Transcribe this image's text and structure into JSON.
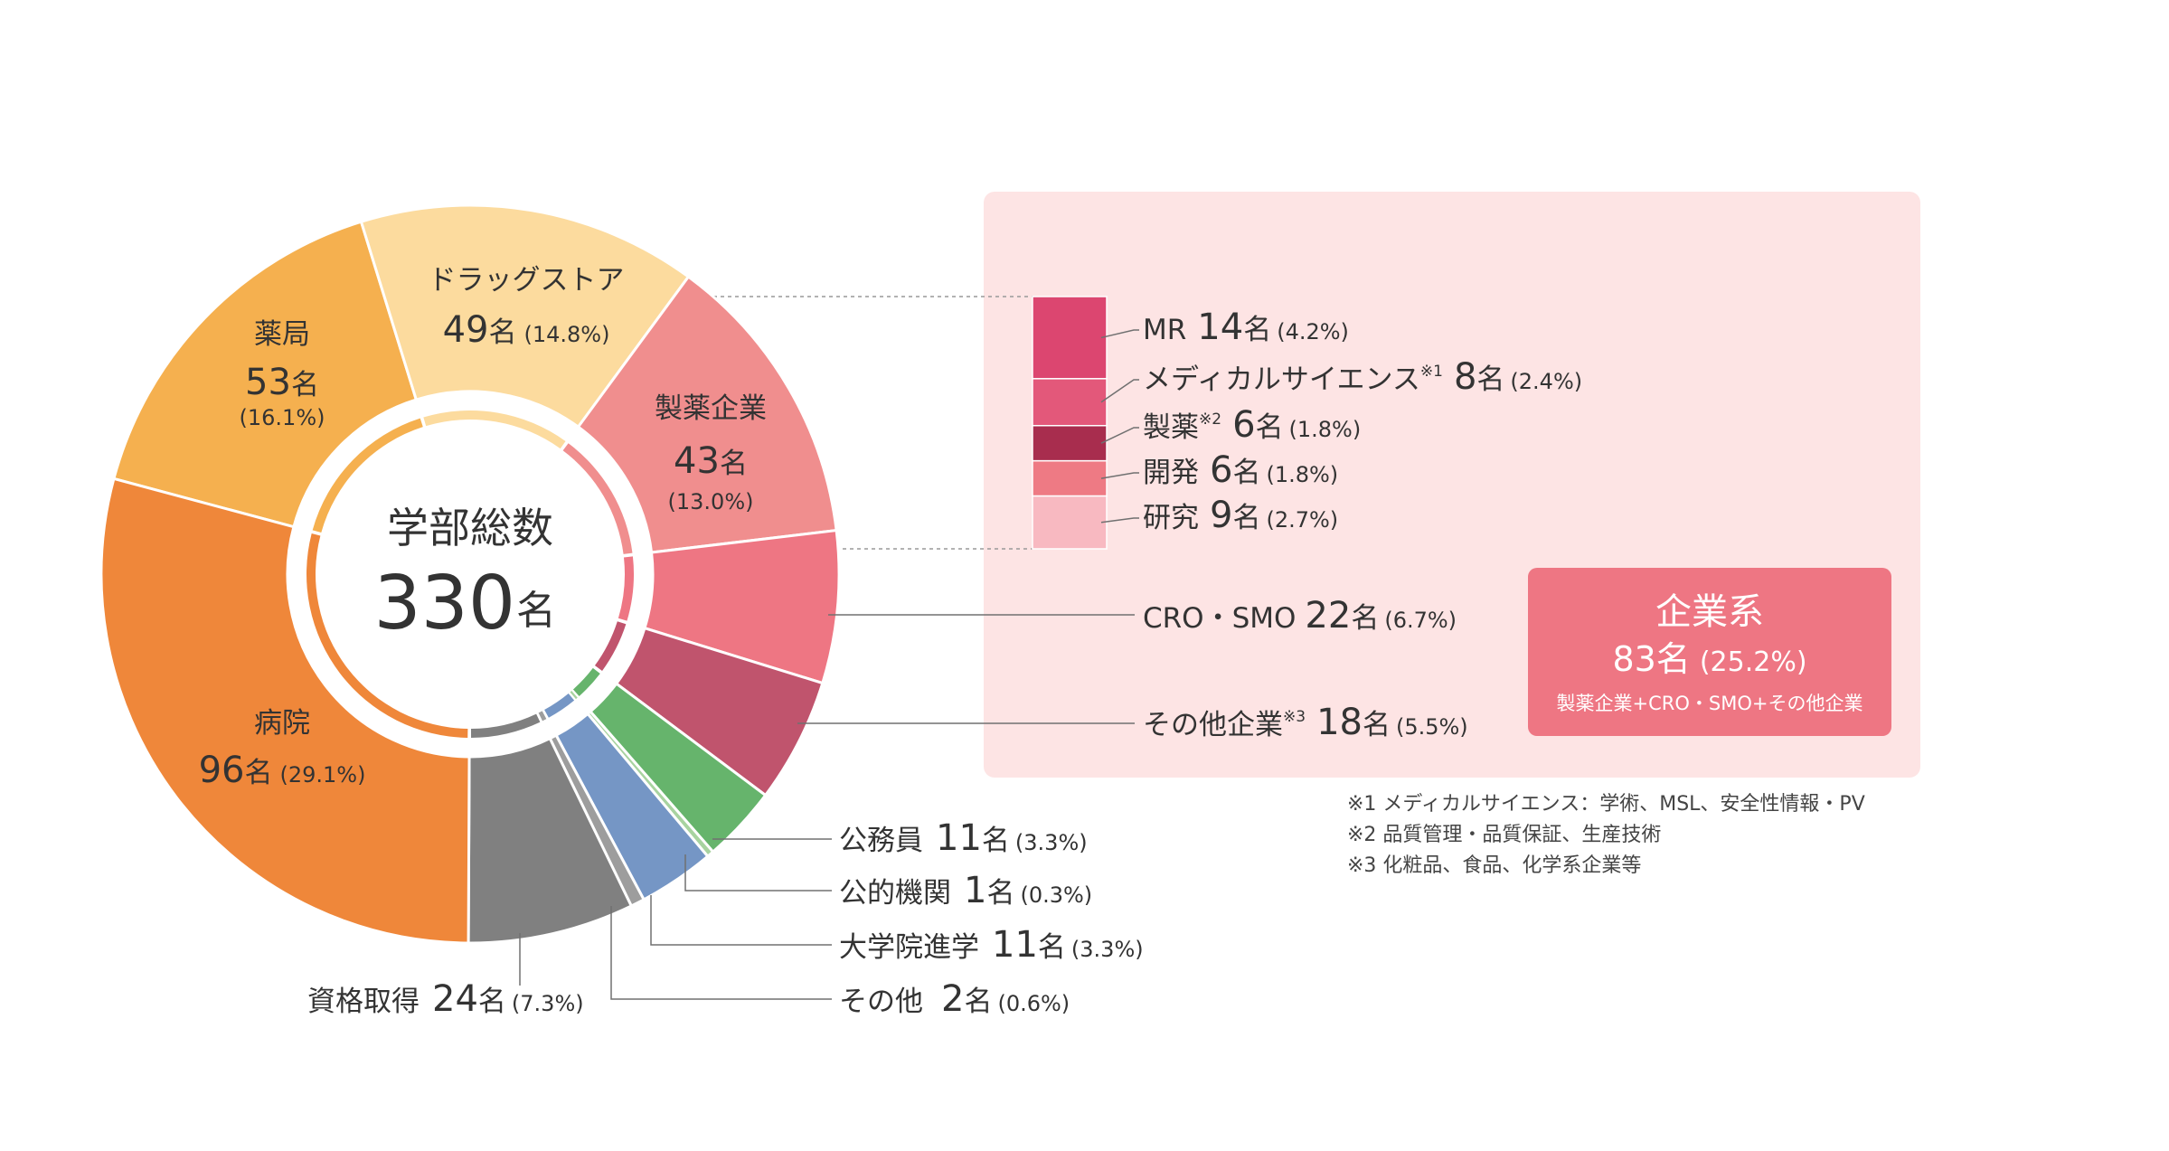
{
  "center": {
    "title": "学部総数",
    "total": "330",
    "unit": "名"
  },
  "chart_data": {
    "type": "pie",
    "style": "donut",
    "total": 330,
    "unit": "名",
    "slices": [
      {
        "label": "薬局",
        "value": 53,
        "pct": "(16.1%)",
        "color": "#F5B04F"
      },
      {
        "label": "ドラッグストア",
        "value": 49,
        "pct": "(14.8%)",
        "color": "#FCDB9E"
      },
      {
        "label": "製薬企業",
        "value": 43,
        "pct": "(13.0%)",
        "color": "#F08E8E"
      },
      {
        "label": "CRO・SMO",
        "value": 22,
        "pct": "(6.7%)",
        "color": "#EE7683"
      },
      {
        "label": "その他企業",
        "value": 18,
        "pct": "(5.5%)",
        "color": "#C0546D",
        "note": "※3"
      },
      {
        "label": "公務員",
        "value": 11,
        "pct": "(3.3%)",
        "color": "#66B46C"
      },
      {
        "label": "公的機関",
        "value": 1,
        "pct": "(0.3%)",
        "color": "#A8D3A0"
      },
      {
        "label": "大学院進学",
        "value": 11,
        "pct": "(3.3%)",
        "color": "#7596C5"
      },
      {
        "label": "その他",
        "value": 2,
        "pct": "(0.6%)",
        "color": "#9D9D9D"
      },
      {
        "label": "資格取得",
        "value": 24,
        "pct": "(7.3%)",
        "color": "#808080"
      },
      {
        "label": "病院",
        "value": 96,
        "pct": "(29.1%)",
        "color": "#EF873A"
      }
    ],
    "breakdown": {
      "parent": "製薬企業",
      "items": [
        {
          "label": "MR",
          "value": 14,
          "pct": "(4.2%)",
          "color": "#DC4670",
          "note": ""
        },
        {
          "label": "メディカルサイエンス",
          "value": 8,
          "pct": "(2.4%)",
          "color": "#E3587A",
          "note": "※1"
        },
        {
          "label": "製薬",
          "value": 6,
          "pct": "(1.8%)",
          "color": "#A82D4E",
          "note": "※2"
        },
        {
          "label": "開発",
          "value": 6,
          "pct": "(1.8%)",
          "color": "#EE7A84",
          "note": ""
        },
        {
          "label": "研究",
          "value": 9,
          "pct": "(2.7%)",
          "color": "#F8B9C1",
          "note": ""
        }
      ]
    },
    "summary": {
      "title": "企業系",
      "value": "83名",
      "pct": "(25.2%)",
      "subtitle": "製薬企業+CRO・SMO+その他企業"
    }
  },
  "notes": [
    "※1 メディカルサイエンス：学術、MSL、安全性情報・PV",
    "※2 品質管理・品質保証、生産技術",
    "※3 化粧品、食品、化学系企業等"
  ],
  "colors": {
    "panel_bg": "#FDE4E4",
    "summary_bg": "#EE7683",
    "leader": "#707070"
  }
}
